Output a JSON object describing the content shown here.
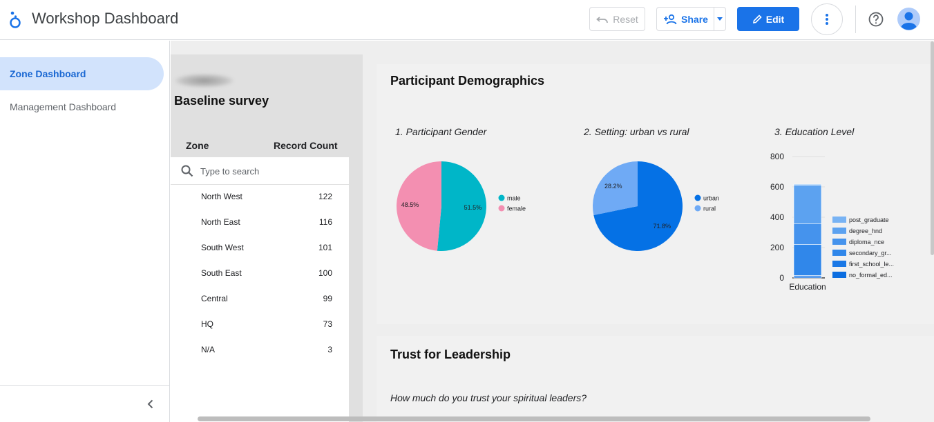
{
  "header": {
    "app_title": "Workshop Dashboard",
    "reset_label": "Reset",
    "share_label": "Share",
    "edit_label": "Edit",
    "icons": [
      "looker-studio-logo",
      "undo-icon",
      "person-add-icon",
      "caret-down-icon",
      "pencil-icon",
      "more-vert-icon",
      "help-icon",
      "account-avatar-icon"
    ]
  },
  "sidebar": {
    "items": [
      {
        "label": "Zone Dashboard",
        "active": true
      },
      {
        "label": "Management Dashboard",
        "active": false
      }
    ]
  },
  "left_panel": {
    "title": "Baseline survey",
    "table": {
      "headers": {
        "zone": "Zone",
        "count": "Record Count"
      },
      "search_placeholder": "Type to search",
      "rows": [
        {
          "zone": "North West",
          "count": "122"
        },
        {
          "zone": "North East",
          "count": "116"
        },
        {
          "zone": "South West",
          "count": "101"
        },
        {
          "zone": "South East",
          "count": "100"
        },
        {
          "zone": "Central",
          "count": "99"
        },
        {
          "zone": "HQ",
          "count": "73"
        },
        {
          "zone": "N/A",
          "count": "3"
        }
      ]
    }
  },
  "demographics": {
    "title": "Participant Demographics"
  },
  "trust": {
    "title": "Trust for Leadership",
    "question": "How much do you trust your spiritual leaders?"
  },
  "colors": {
    "accent": "#1a73e8",
    "male": "#00b6c8",
    "female": "#f38fb1",
    "urban": "#0571e5",
    "rural": "#6faaf5"
  },
  "chart_data": [
    {
      "type": "pie",
      "title": "1. Participant Gender",
      "slices": [
        {
          "label": "male",
          "value": 51.5,
          "color": "#00b6c8"
        },
        {
          "label": "female",
          "value": 48.5,
          "color": "#f38fb1"
        }
      ],
      "legend": "right"
    },
    {
      "type": "pie",
      "title": "2. Setting: urban vs rural",
      "slices": [
        {
          "label": "urban",
          "value": 71.8,
          "color": "#0571e5"
        },
        {
          "label": "rural",
          "value": 28.2,
          "color": "#6faaf5"
        }
      ],
      "legend": "right"
    },
    {
      "type": "bar",
      "title": "3. Education Level",
      "stacked": true,
      "categories": [
        "Education"
      ],
      "ylim": [
        0,
        800
      ],
      "yticks": [
        0,
        200,
        400,
        600,
        800
      ],
      "grid": true,
      "legend": "right",
      "series": [
        {
          "name": "no_formal_ed...",
          "values": [
            8
          ],
          "color": "#0b6de0"
        },
        {
          "name": "first_school_le...",
          "values": [
            8
          ],
          "color": "#1a78e6"
        },
        {
          "name": "secondary_gr...",
          "values": [
            205
          ],
          "color": "#3087ea"
        },
        {
          "name": "diploma_nce",
          "values": [
            135
          ],
          "color": "#4593ed"
        },
        {
          "name": "degree_hnd",
          "values": [
            255
          ],
          "color": "#5ca2f0"
        },
        {
          "name": "post_graduate",
          "values": [
            6
          ],
          "color": "#78b3f4"
        }
      ]
    }
  ]
}
